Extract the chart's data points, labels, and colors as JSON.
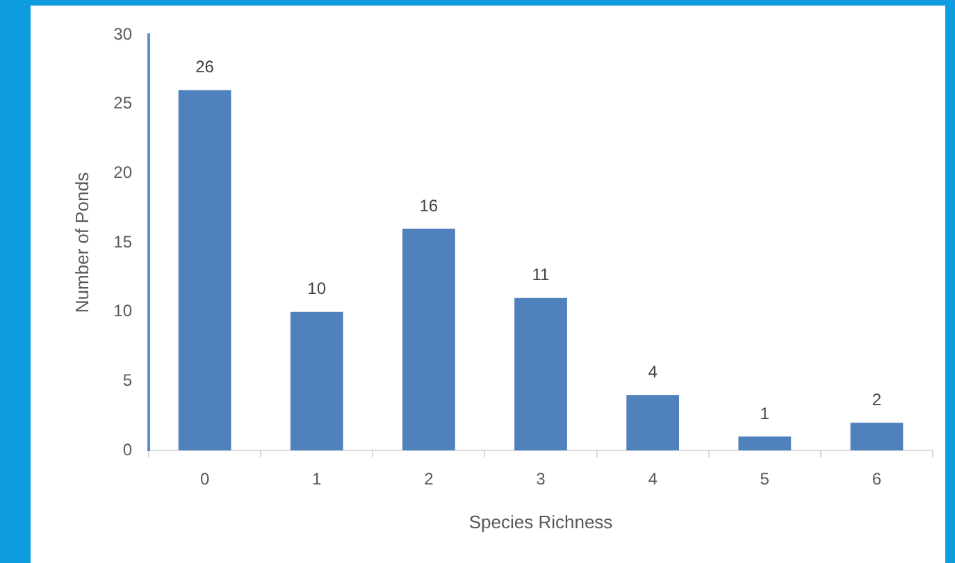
{
  "chart_data": {
    "type": "bar",
    "xlabel": "Species Richness",
    "ylabel": "Number of Ponds",
    "categories": [
      "0",
      "1",
      "2",
      "3",
      "4",
      "5",
      "6"
    ],
    "values": [
      26,
      10,
      16,
      11,
      4,
      1,
      2
    ],
    "color": "#4f81bd",
    "ylim": [
      0,
      30
    ],
    "yticks": [
      0,
      5,
      10,
      15,
      20,
      25,
      30
    ],
    "grid": false,
    "legend": false,
    "data_labels": true
  }
}
